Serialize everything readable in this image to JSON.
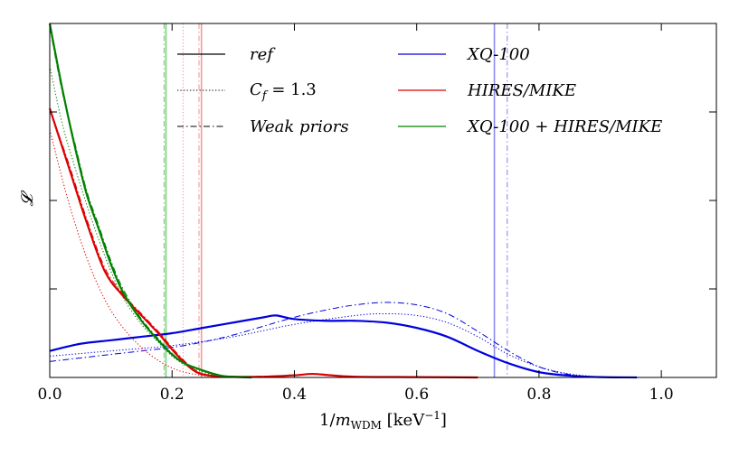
{
  "chart_data": {
    "type": "line",
    "xlabel": "1/m_WDM [keV⁻¹]",
    "xlabel_main": "1/",
    "xlabel_m": "m",
    "xlabel_sub": "WDM",
    "xlabel_unit": " [keV",
    "xlabel_exp": "−1",
    "xlabel_close": "]",
    "ylabel": "𝓛",
    "xlim": [
      0.0,
      1.09
    ],
    "ylim": [
      0.0,
      1.0
    ],
    "x_ticks": [
      0.0,
      0.2,
      0.4,
      0.6,
      0.8,
      1.0
    ],
    "x_tick_labels": [
      "0.0",
      "0.2",
      "0.4",
      "0.6",
      "0.8",
      "1.0"
    ],
    "y_ticks": [
      0.25,
      0.5,
      0.75
    ],
    "colors": {
      "xq100": "#0000dd",
      "hires": "#dd0000",
      "combined": "#008000",
      "xq100_light": "#8c8cf0",
      "hires_light": "#f09a9a",
      "combined_light": "#7fce7f"
    },
    "legend": {
      "styles": [
        {
          "label": "ref",
          "dash": "solid"
        },
        {
          "label": "C_f = 1.3",
          "text_c": "C",
          "text_sub": "f",
          "text_rest": " = 1.3",
          "dash": "dotted"
        },
        {
          "label": "Weak priors",
          "dash": "dashdot"
        }
      ],
      "datasets": [
        {
          "label": "XQ-100",
          "color": "#0000dd"
        },
        {
          "label": "HIRES/MIKE",
          "color": "#dd0000"
        },
        {
          "label": "XQ-100 + HIRES/MIKE",
          "color": "#008000"
        }
      ]
    },
    "vlines": [
      {
        "dataset": "XQ-100",
        "style": "ref",
        "x": 0.727
      },
      {
        "dataset": "XQ-100",
        "style": "weak",
        "x": 0.748
      },
      {
        "dataset": "HIRES/MIKE",
        "style": "ref",
        "x": 0.248
      },
      {
        "dataset": "HIRES/MIKE",
        "style": "weak",
        "x": 0.244
      },
      {
        "dataset": "HIRES/MIKE",
        "style": "cf",
        "x": 0.218
      },
      {
        "dataset": "XQ-100 + HIRES/MIKE",
        "style": "ref",
        "x": 0.19
      },
      {
        "dataset": "XQ-100 + HIRES/MIKE",
        "style": "weak",
        "x": 0.187
      }
    ],
    "series": [
      {
        "name": "XQ-100 ref",
        "dataset": "XQ-100",
        "dash": "solid",
        "width": 2.2,
        "x": [
          0.0,
          0.05,
          0.1,
          0.15,
          0.2,
          0.25,
          0.3,
          0.35,
          0.37,
          0.4,
          0.45,
          0.5,
          0.55,
          0.6,
          0.65,
          0.7,
          0.75,
          0.8,
          0.85,
          0.9,
          0.96
        ],
        "y": [
          0.075,
          0.095,
          0.105,
          0.115,
          0.125,
          0.14,
          0.155,
          0.17,
          0.175,
          0.165,
          0.16,
          0.16,
          0.155,
          0.14,
          0.115,
          0.075,
          0.04,
          0.015,
          0.005,
          0.001,
          0.0
        ]
      },
      {
        "name": "XQ-100 Cf=1.3",
        "dataset": "XQ-100",
        "dash": "dotted",
        "width": 1.0,
        "x": [
          0.0,
          0.1,
          0.2,
          0.3,
          0.4,
          0.5,
          0.55,
          0.6,
          0.65,
          0.7,
          0.75,
          0.8,
          0.85,
          0.9,
          0.95
        ],
        "y": [
          0.06,
          0.075,
          0.09,
          0.115,
          0.15,
          0.175,
          0.18,
          0.175,
          0.155,
          0.115,
          0.065,
          0.03,
          0.01,
          0.002,
          0.0
        ]
      },
      {
        "name": "XQ-100 weak",
        "dataset": "XQ-100",
        "dash": "dashdot",
        "width": 1.0,
        "x": [
          0.0,
          0.1,
          0.2,
          0.25,
          0.3,
          0.35,
          0.4,
          0.45,
          0.5,
          0.55,
          0.6,
          0.65,
          0.7,
          0.75,
          0.8,
          0.85,
          0.9
        ],
        "y": [
          0.045,
          0.065,
          0.085,
          0.1,
          0.12,
          0.145,
          0.17,
          0.19,
          0.205,
          0.212,
          0.205,
          0.18,
          0.13,
          0.075,
          0.03,
          0.008,
          0.0
        ]
      },
      {
        "name": "HIRES/MIKE ref",
        "dataset": "HIRES/MIKE",
        "dash": "solid",
        "width": 2.2,
        "x": [
          0.0,
          0.03,
          0.06,
          0.09,
          0.12,
          0.15,
          0.18,
          0.21,
          0.24,
          0.27,
          0.3,
          0.35,
          0.4,
          0.43,
          0.46,
          0.5,
          0.6,
          0.7
        ],
        "y": [
          0.76,
          0.6,
          0.44,
          0.3,
          0.23,
          0.175,
          0.12,
          0.06,
          0.015,
          0.004,
          0.002,
          0.002,
          0.006,
          0.01,
          0.006,
          0.002,
          0.001,
          0.0
        ]
      },
      {
        "name": "HIRES/MIKE Cf=1.3",
        "dataset": "HIRES/MIKE",
        "dash": "dotted",
        "width": 1.0,
        "x": [
          0.0,
          0.03,
          0.06,
          0.09,
          0.12,
          0.15,
          0.18,
          0.21,
          0.24,
          0.27,
          0.3
        ],
        "y": [
          0.7,
          0.5,
          0.34,
          0.22,
          0.14,
          0.085,
          0.045,
          0.02,
          0.008,
          0.002,
          0.0
        ]
      },
      {
        "name": "HIRES/MIKE weak",
        "dataset": "HIRES/MIKE",
        "dash": "dashdot",
        "width": 1.0,
        "x": [
          0.0,
          0.03,
          0.06,
          0.09,
          0.12,
          0.15,
          0.18,
          0.21,
          0.24,
          0.27,
          0.3,
          0.4,
          0.43,
          0.46
        ],
        "y": [
          0.76,
          0.61,
          0.45,
          0.31,
          0.235,
          0.18,
          0.125,
          0.065,
          0.018,
          0.005,
          0.002,
          0.006,
          0.01,
          0.005
        ]
      },
      {
        "name": "Combined ref",
        "dataset": "XQ-100 + HIRES/MIKE",
        "dash": "solid",
        "width": 2.2,
        "x": [
          0.0,
          0.02,
          0.04,
          0.06,
          0.08,
          0.1,
          0.12,
          0.15,
          0.18,
          0.2,
          0.22,
          0.25,
          0.28,
          0.3,
          0.33
        ],
        "y": [
          1.0,
          0.82,
          0.66,
          0.52,
          0.42,
          0.32,
          0.24,
          0.16,
          0.1,
          0.065,
          0.04,
          0.02,
          0.005,
          0.002,
          0.0
        ]
      },
      {
        "name": "Combined Cf=1.3",
        "dataset": "XQ-100 + HIRES/MIKE",
        "dash": "dotted",
        "width": 1.0,
        "x": [
          0.0,
          0.02,
          0.04,
          0.06,
          0.08,
          0.1,
          0.12,
          0.15,
          0.18,
          0.2,
          0.22,
          0.25,
          0.28,
          0.3
        ],
        "y": [
          0.88,
          0.72,
          0.6,
          0.49,
          0.39,
          0.3,
          0.225,
          0.15,
          0.095,
          0.06,
          0.036,
          0.015,
          0.004,
          0.0
        ]
      },
      {
        "name": "Combined weak",
        "dataset": "XQ-100 + HIRES/MIKE",
        "dash": "dashdot",
        "width": 1.0,
        "x": [
          0.0,
          0.02,
          0.04,
          0.06,
          0.08,
          0.1,
          0.12,
          0.15,
          0.18,
          0.2,
          0.22,
          0.25,
          0.28,
          0.3,
          0.33
        ],
        "y": [
          0.99,
          0.81,
          0.67,
          0.53,
          0.43,
          0.33,
          0.25,
          0.165,
          0.105,
          0.068,
          0.042,
          0.021,
          0.006,
          0.002,
          0.0
        ]
      }
    ]
  }
}
